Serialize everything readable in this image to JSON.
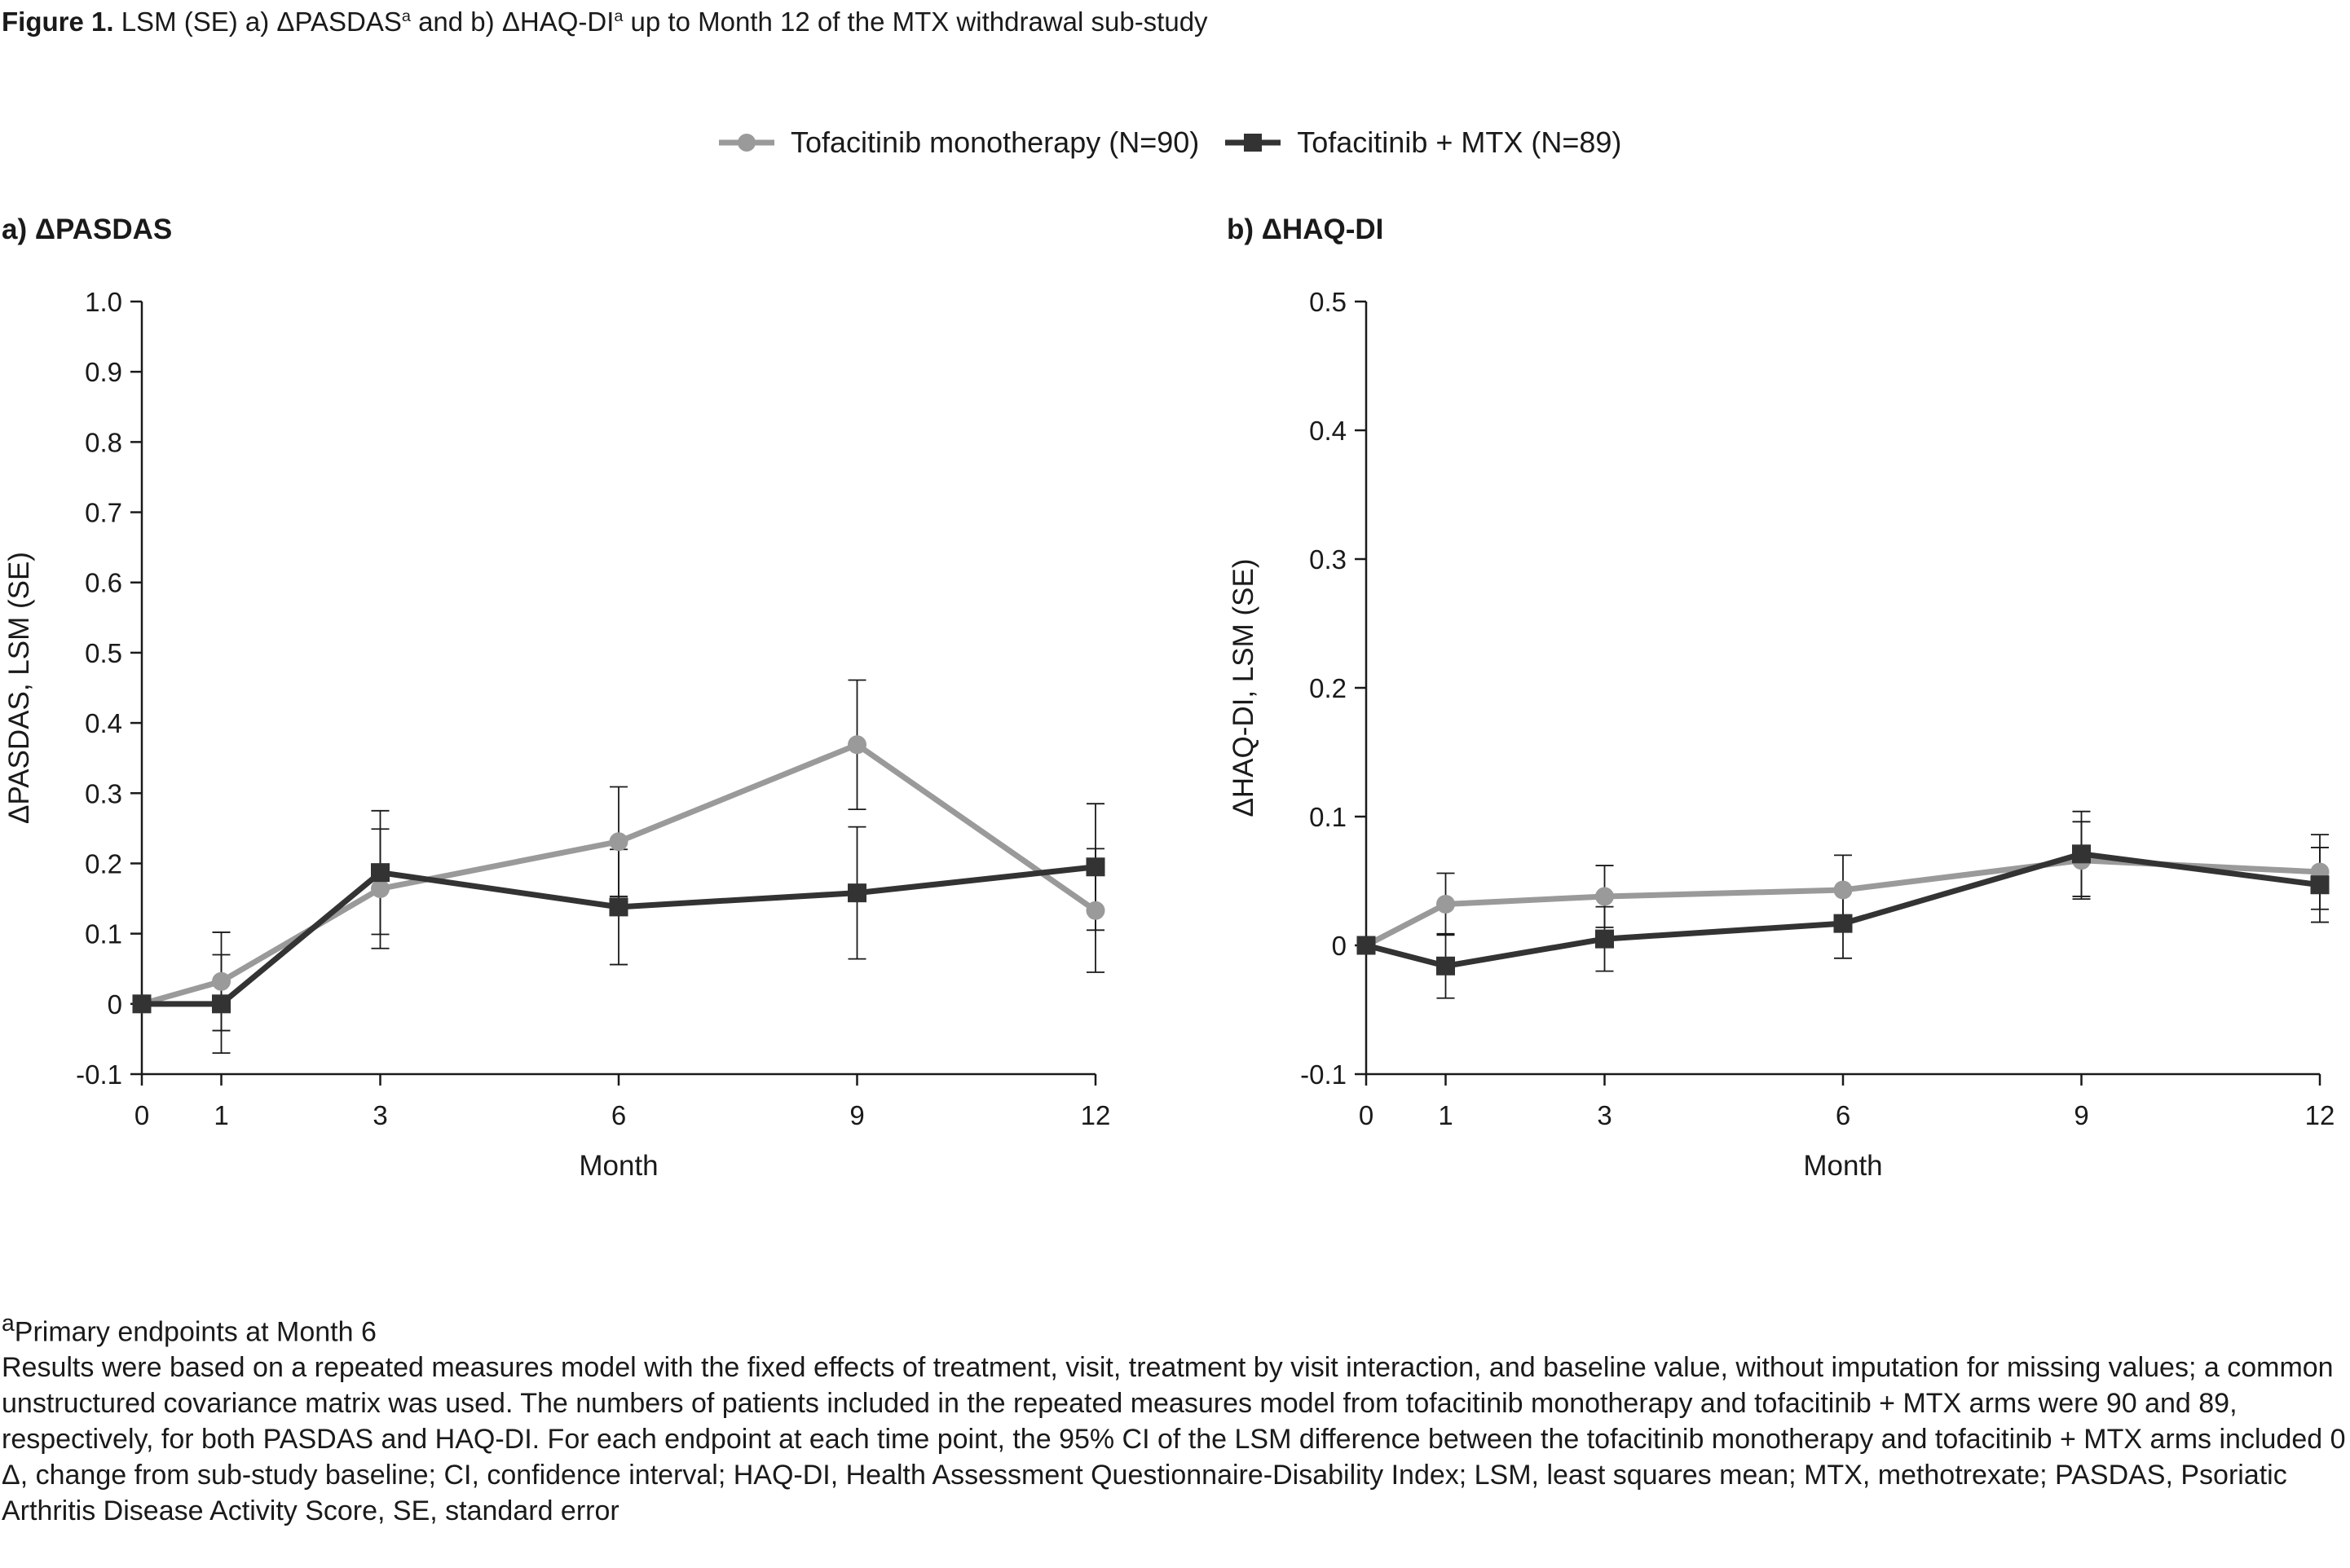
{
  "figure": {
    "label": "Figure 1.",
    "title_pre": " LSM (SE) a) ΔPASDAS",
    "title_sup1": "a",
    "title_mid": " and b) ΔHAQ-DI",
    "title_sup2": "a",
    "title_post": " up to Month 12 of the MTX withdrawal sub-study"
  },
  "legend": {
    "items": [
      {
        "label": "Tofacitinib monotherapy (N=90)",
        "color": "#9a9a9a",
        "marker": "circle"
      },
      {
        "label": "Tofacitinib + MTX (N=89)",
        "color": "#333333",
        "marker": "square"
      }
    ]
  },
  "panels": {
    "a": {
      "title": "a) ΔPASDAS"
    },
    "b": {
      "title": "b) ΔHAQ-DI"
    }
  },
  "chart_data": [
    {
      "type": "line",
      "title": "a) ΔPASDAS",
      "xlabel": "Month",
      "ylabel": "ΔPASDAS, LSM (SE)",
      "x": [
        0,
        1,
        3,
        6,
        9,
        12
      ],
      "xticks": [
        "0",
        "1",
        "3",
        "6",
        "9",
        "12"
      ],
      "ylim": [
        -0.1,
        1.0
      ],
      "yticks": [
        -0.1,
        0,
        0.1,
        0.2,
        0.3,
        0.4,
        0.5,
        0.6,
        0.7,
        0.8,
        0.9,
        1.0
      ],
      "ytick_labels": [
        "-0.1",
        "0",
        "0.1",
        "0.2",
        "0.3",
        "0.4",
        "0.5",
        "0.6",
        "0.7",
        "0.8",
        "0.9",
        "1.0"
      ],
      "series": [
        {
          "name": "Tofacitinib monotherapy (N=90)",
          "color": "#9a9a9a",
          "marker": "circle",
          "values": [
            0,
            0.032,
            0.164,
            0.231,
            0.369,
            0.133
          ],
          "se": [
            0,
            0.07,
            0.085,
            0.078,
            0.092,
            0.088
          ]
        },
        {
          "name": "Tofacitinib + MTX (N=89)",
          "color": "#333333",
          "marker": "square",
          "values": [
            0,
            0,
            0.187,
            0.138,
            0.158,
            0.195
          ],
          "se": [
            0,
            0.07,
            0.088,
            0.082,
            0.094,
            0.09
          ]
        }
      ]
    },
    {
      "type": "line",
      "title": "b) ΔHAQ-DI",
      "xlabel": "Month",
      "ylabel": "ΔHAQ-DI, LSM (SE)",
      "x": [
        0,
        1,
        3,
        6,
        9,
        12
      ],
      "xticks": [
        "0",
        "1",
        "3",
        "6",
        "9",
        "12"
      ],
      "ylim": [
        -0.1,
        0.5
      ],
      "yticks": [
        -0.1,
        0,
        0.1,
        0.2,
        0.3,
        0.4,
        0.5
      ],
      "ytick_labels": [
        "-0.1",
        "0",
        "0.1",
        "0.2",
        "0.3",
        "0.4",
        "0.5"
      ],
      "series": [
        {
          "name": "Tofacitinib monotherapy (N=90)",
          "color": "#9a9a9a",
          "marker": "circle",
          "values": [
            0,
            0.032,
            0.038,
            0.043,
            0.066,
            0.057
          ],
          "se": [
            0,
            0.024,
            0.024,
            0.027,
            0.03,
            0.029
          ]
        },
        {
          "name": "Tofacitinib + MTX (N=89)",
          "color": "#333333",
          "marker": "square",
          "values": [
            0,
            -0.016,
            0.005,
            0.017,
            0.071,
            0.047
          ],
          "se": [
            0,
            0.025,
            0.025,
            0.027,
            0.033,
            0.029
          ]
        }
      ]
    }
  ],
  "footnotes": {
    "primary_sup": "a",
    "primary": "Primary endpoints at Month 6",
    "methods": "Results were based on a repeated measures model with the fixed effects of treatment, visit, treatment by visit interaction, and baseline value, without imputation for missing values; a common unstructured covariance matrix was used. The numbers of patients included in the repeated measures model from tofacitinib monotherapy and tofacitinib + MTX arms were 90 and 89, respectively, for both PASDAS and HAQ-DI. For each endpoint at each time point, the 95% CI of the LSM difference between the tofacitinib monotherapy and tofacitinib + MTX arms included 0",
    "abbreviations": "Δ, change from sub-study baseline; CI, confidence interval; HAQ-DI, Health Assessment Questionnaire-Disability Index; LSM, least squares mean; MTX, methotrexate; PASDAS, Psoriatic Arthritis Disease Activity Score, SE, standard error"
  }
}
